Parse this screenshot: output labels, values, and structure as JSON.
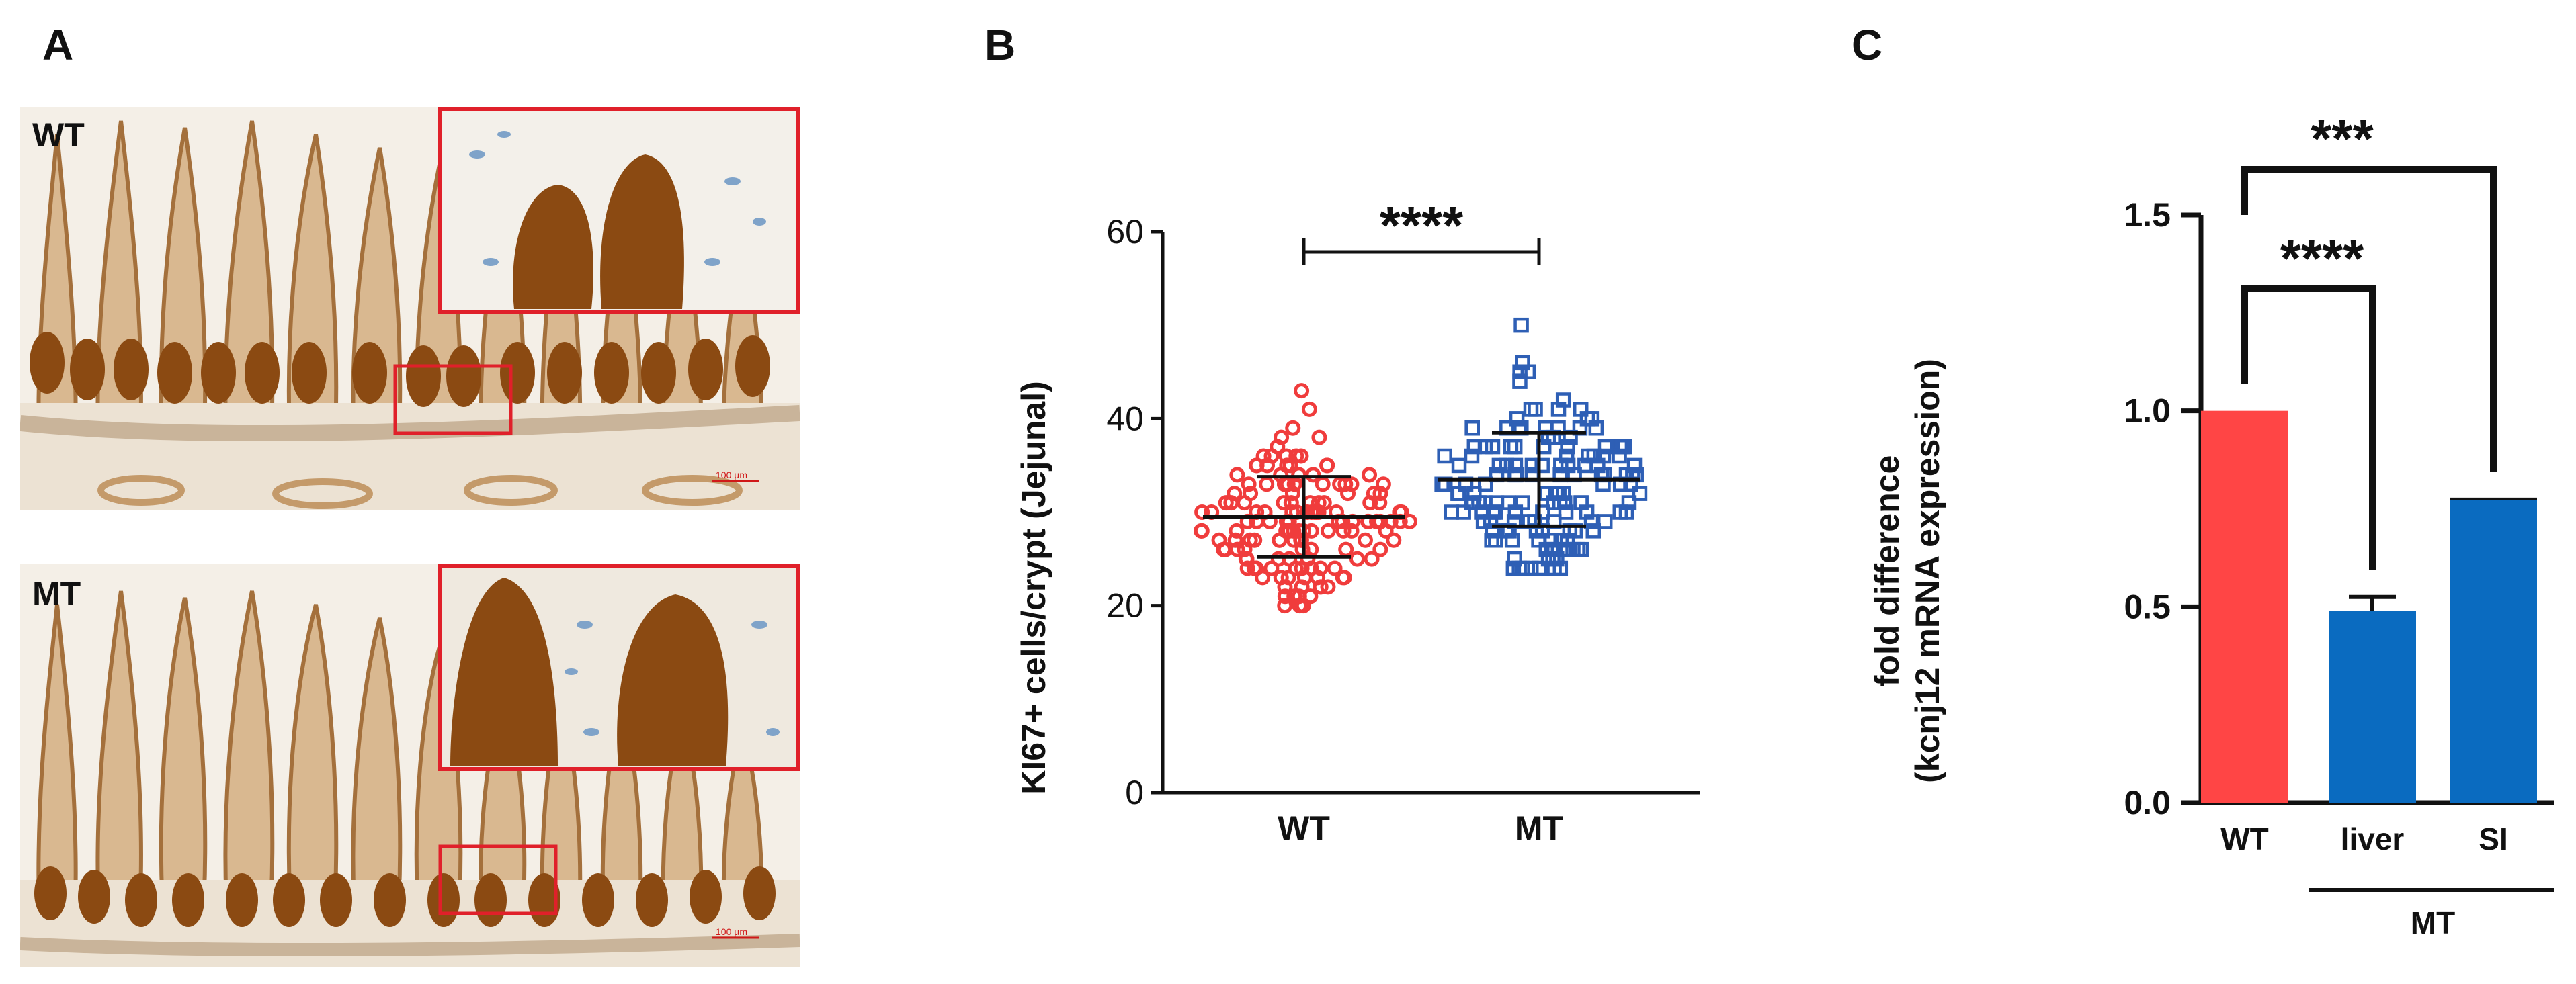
{
  "panels": {
    "a": "A",
    "b": "B",
    "c": "C"
  },
  "micrographs": [
    {
      "label": "WT",
      "scale_bar": "100 µm"
    },
    {
      "label": "MT",
      "scale_bar": "100 µm"
    }
  ],
  "colors": {
    "wt": "#f03c3c",
    "mt_open": "#2e5fb5",
    "c_wt": "#ff4545",
    "c_mt": "#0a6bc0",
    "stain": "#8b4a12"
  },
  "chart_data": [
    {
      "type": "scatter",
      "panel": "B",
      "ylabel": "KI67+ cells/crypt (Jejunal)",
      "categories": [
        "WT",
        "MT"
      ],
      "ylim": [
        0,
        60
      ],
      "yticks": [
        "0",
        "20",
        "40",
        "60"
      ],
      "series": [
        {
          "name": "WT",
          "marker": "circle",
          "mean": 29.5,
          "sd": 4.3,
          "min": 20,
          "max": 43,
          "n": 150
        },
        {
          "name": "MT",
          "marker": "square",
          "mean": 33.5,
          "sd": 5.0,
          "min": 24,
          "max": 50,
          "n": 150
        }
      ],
      "significance": {
        "between": [
          "WT",
          "MT"
        ],
        "label": "****"
      }
    },
    {
      "type": "bar",
      "panel": "C",
      "ylabel_lines": [
        "fold difference",
        "(kcnj12 mRNA expression)"
      ],
      "categories": [
        "WT",
        "liver",
        "SI"
      ],
      "group_label": "MT",
      "group_members": [
        "liver",
        "SI"
      ],
      "values": [
        1.0,
        0.49,
        0.775
      ],
      "errors": [
        0,
        0.035,
        0.004
      ],
      "ylim": [
        0,
        1.5
      ],
      "yticks": [
        "0.0",
        "0.5",
        "1.0",
        "1.5"
      ],
      "significance": [
        {
          "from": "WT",
          "to": "SI",
          "label": "***"
        },
        {
          "from": "WT",
          "to": "liver",
          "label": "****"
        }
      ]
    }
  ]
}
